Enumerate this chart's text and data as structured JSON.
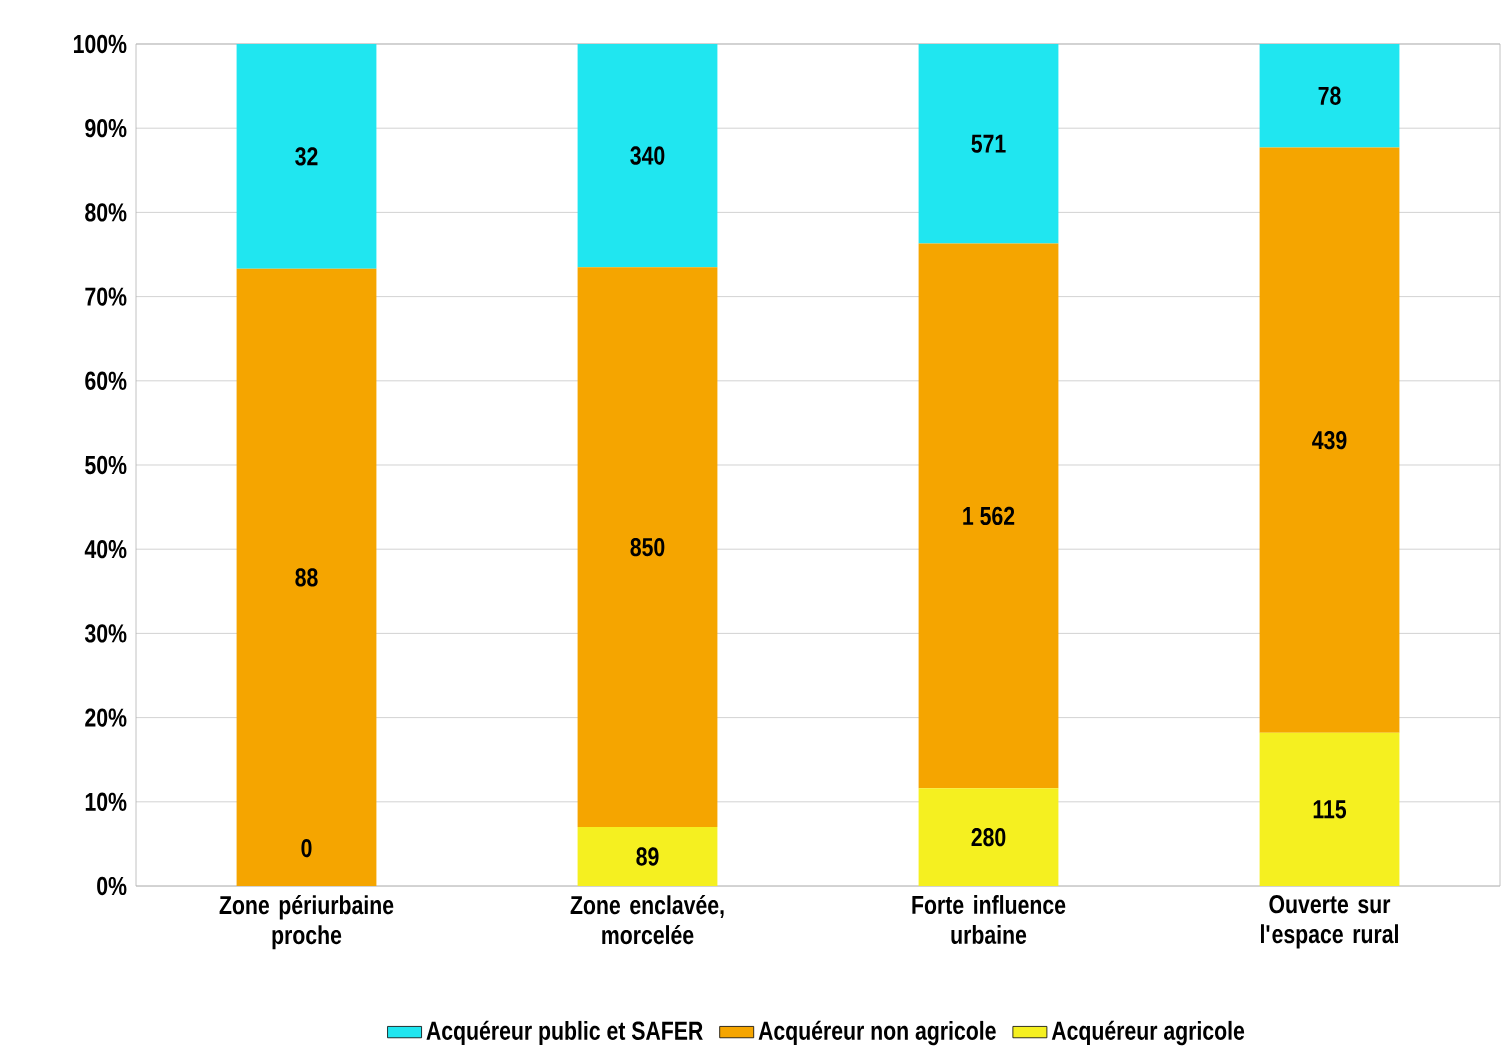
{
  "chart_data": {
    "type": "bar",
    "stacked": true,
    "categories": [
      "Zone périurbaine proche",
      "Zone enclavée, morcelée",
      "Forte influence urbaine",
      "Ouverte sur l'espace rural"
    ],
    "series": [
      {
        "name": "Acquéreur agricole",
        "color": "#f5f020",
        "values": [
          0,
          7.0,
          11.6,
          18.2
        ]
      },
      {
        "name": "Acquéreur non agricole",
        "color": "#f5a500",
        "values": [
          73.3,
          66.5,
          64.7,
          69.5
        ]
      },
      {
        "name": "Acquéreur public et SAFER",
        "color": "#20e6f0",
        "values": [
          26.7,
          26.5,
          23.7,
          12.3
        ]
      }
    ],
    "annotations": [
      "0",
      "89",
      "280",
      "115",
      "88",
      "850",
      "1 562",
      "439",
      "32",
      "340",
      "571",
      "78"
    ],
    "ylim": [
      0,
      100
    ],
    "yticks": [
      {
        "value": 0,
        "label": "0%"
      },
      {
        "value": 10,
        "label": "10%"
      },
      {
        "value": 20,
        "label": "20%"
      },
      {
        "value": 30,
        "label": "30%"
      },
      {
        "value": 40,
        "label": "40%"
      },
      {
        "value": 50,
        "label": "50%"
      },
      {
        "value": 60,
        "label": "60%"
      },
      {
        "value": 70,
        "label": "70%"
      },
      {
        "value": 80,
        "label": "80%"
      },
      {
        "value": 90,
        "label": "90%"
      },
      {
        "value": 100,
        "label": "100%"
      }
    ],
    "grid": "y",
    "legend": "bottom"
  }
}
